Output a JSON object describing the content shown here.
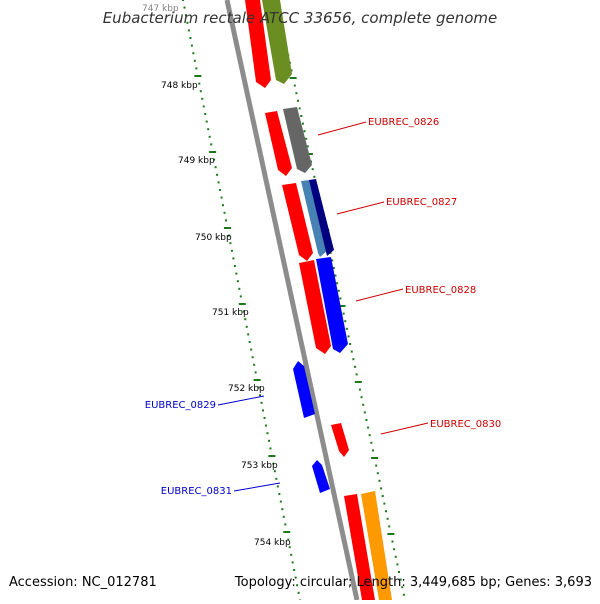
{
  "title": "Eubacterium rectale ATCC 33656, complete genome",
  "footer": {
    "accession": "Accession: NC_012781",
    "summary": "Topology: circular; Length: 3,449,685 bp; Genes: 3,693"
  },
  "colors": {
    "backbone": "#8c8c8c",
    "tick": "#1a7a1a",
    "forward_label": "#cc0000",
    "reverse_label": "#0000cc",
    "cds_red": "#ff0000",
    "olive": "#6b8e23",
    "gray": "#666666",
    "steelblue": "#4682b4",
    "navy": "#000080",
    "blue": "#0000ff",
    "orange": "#ff9900"
  },
  "ticks": [
    "747 kbp",
    "748 kbp",
    "749 kbp",
    "750 kbp",
    "751 kbp",
    "752 kbp",
    "753 kbp",
    "754 kbp"
  ],
  "gene_labels": [
    {
      "name": "EUBREC_0826",
      "strand": "forward"
    },
    {
      "name": "EUBREC_0827",
      "strand": "forward"
    },
    {
      "name": "EUBREC_0828",
      "strand": "forward"
    },
    {
      "name": "EUBREC_0829",
      "strand": "reverse"
    },
    {
      "name": "EUBREC_0830",
      "strand": "forward"
    },
    {
      "name": "EUBREC_0831",
      "strand": "reverse"
    }
  ]
}
